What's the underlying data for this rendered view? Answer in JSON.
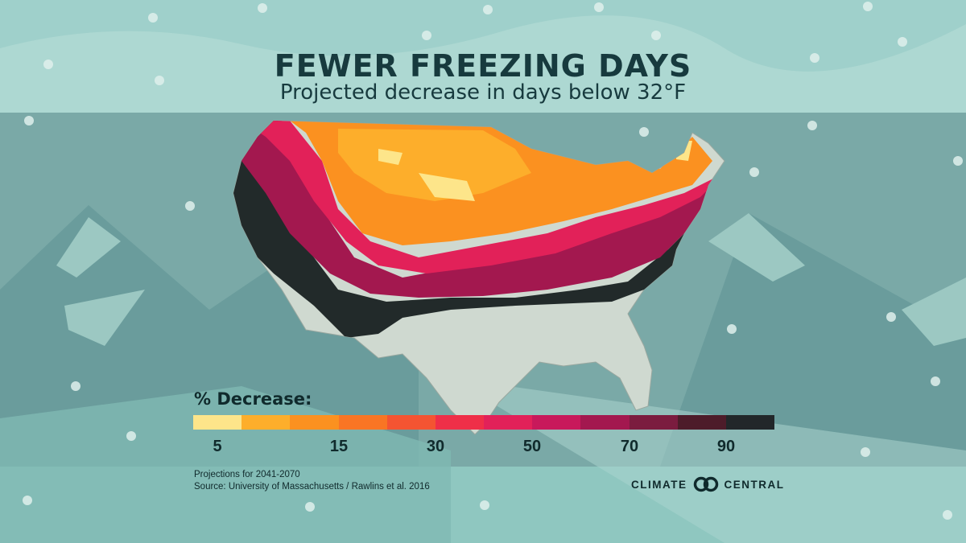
{
  "title": "FEWER FREEZING DAYS",
  "subtitle": "Projected decrease in days below 32°F",
  "legend": {
    "title": "% Decrease:",
    "ticks": [
      "5",
      "15",
      "30",
      "50",
      "70",
      "90"
    ],
    "colors": [
      "#fde58a",
      "#fdae2b",
      "#fb9120",
      "#f97524",
      "#f45432",
      "#ef2f48",
      "#e22159",
      "#c8195b",
      "#a3184f",
      "#7b1c3f",
      "#4d1c2a",
      "#22272a"
    ]
  },
  "notes": {
    "line1": "Projections for 2041-2070",
    "line2": "Source: University of Massachusetts / Rawlins et al. 2016"
  },
  "logo": {
    "left": "CLIMATE",
    "right": "CENTRAL"
  },
  "colors": {
    "title": "#173a3e",
    "land": "#cfd9d0",
    "band_dark": "#222a2a"
  }
}
